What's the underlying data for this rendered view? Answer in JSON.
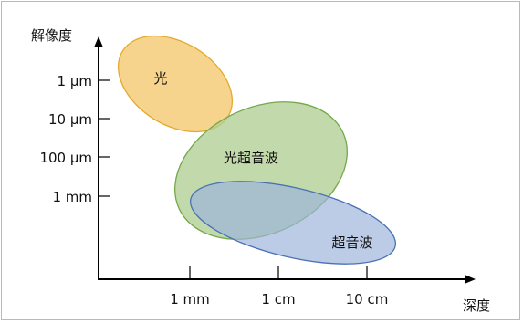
{
  "diagram": {
    "y_axis_label": "解像度",
    "x_axis_label": "深度",
    "y_ticks": [
      "1 μm",
      "10 μm",
      "100 μm",
      "1 mm"
    ],
    "x_ticks": [
      "1 mm",
      "1 cm",
      "10 cm"
    ],
    "regions": [
      {
        "label": "光",
        "fill": "#f4cd7a",
        "stroke": "#e3a92a"
      },
      {
        "label": "光超音波",
        "fill": "#b6d39a",
        "stroke": "#73a84a"
      },
      {
        "label": "超音波",
        "fill": "#9cb4dc",
        "stroke": "#4a71b3"
      }
    ],
    "colors": {
      "axis": "#000000",
      "frame": "#b9b9b9"
    }
  }
}
